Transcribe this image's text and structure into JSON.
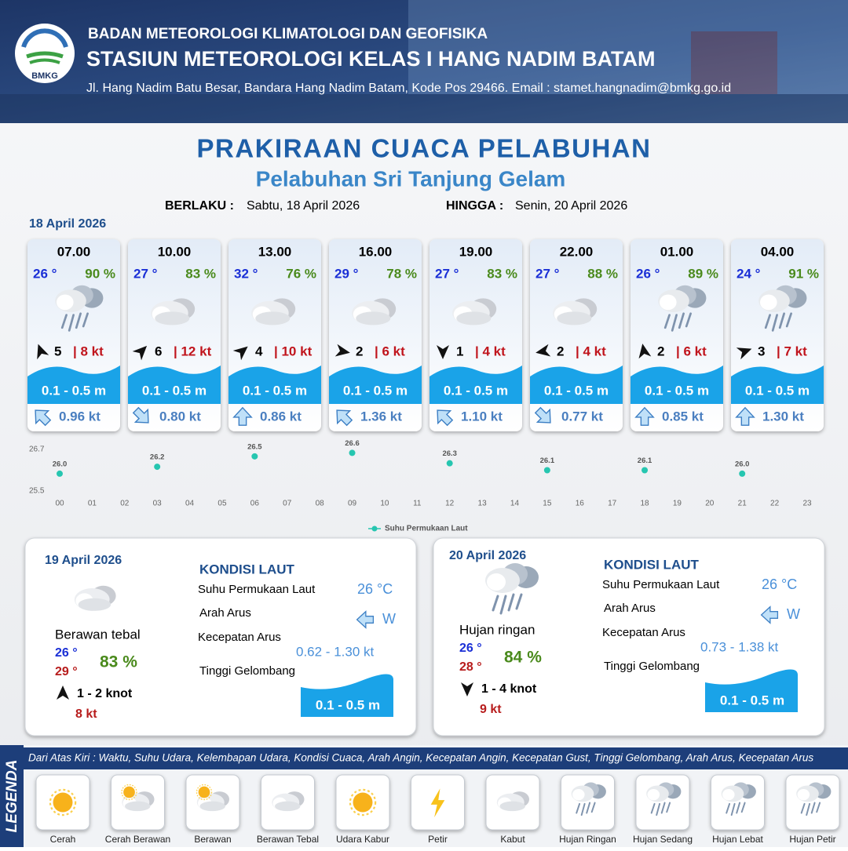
{
  "header": {
    "logo": "BMKG",
    "agency": "BADAN METEOROLOGI KLIMATOLOGI DAN GEOFISIKA",
    "station": "STASIUN METEOROLOGI KELAS I HANG NADIM BATAM",
    "address": "Jl. Hang Nadim Batu Besar, Bandara Hang Nadim Batam, Kode Pos 29466. Email : stamet.hangnadim@bmkg.go.id"
  },
  "title": "PRAKIRAAN CUACA PELABUHAN",
  "subtitle": "Pelabuhan Sri Tanjung Gelam",
  "validity": {
    "from_label": "BERLAKU :",
    "from": "Sabtu, 18 April 2026",
    "to_label": "HINGGA :",
    "to": "Senin, 20 April 2026"
  },
  "day1": {
    "date": "18 April 2026",
    "forecasts": [
      {
        "time": "07.00",
        "temp": "26 °",
        "humidity": "90 %",
        "wind": "5",
        "gust": "| 8 kt",
        "wave": "0.1 - 0.5 m",
        "current": "0.96 kt"
      },
      {
        "time": "10.00",
        "temp": "27 °",
        "humidity": "83 %",
        "wind": "6",
        "gust": "| 12 kt",
        "wave": "0.1 - 0.5 m",
        "current": "0.80 kt"
      },
      {
        "time": "13.00",
        "temp": "32 °",
        "humidity": "76 %",
        "wind": "4",
        "gust": "| 10 kt",
        "wave": "0.1 - 0.5 m",
        "current": "0.86 kt"
      },
      {
        "time": "16.00",
        "temp": "29 °",
        "humidity": "78 %",
        "wind": "2",
        "gust": "| 6 kt",
        "wave": "0.1 - 0.5 m",
        "current": "1.36 kt"
      },
      {
        "time": "19.00",
        "temp": "27 °",
        "humidity": "83 %",
        "wind": "1",
        "gust": "| 4 kt",
        "wave": "0.1 - 0.5 m",
        "current": "1.10 kt"
      },
      {
        "time": "22.00",
        "temp": "27 °",
        "humidity": "88 %",
        "wind": "2",
        "gust": "| 4 kt",
        "wave": "0.1 - 0.5 m",
        "current": "0.77 kt"
      },
      {
        "time": "01.00",
        "temp": "26 °",
        "humidity": "89 %",
        "wind": "2",
        "gust": "| 6 kt",
        "wave": "0.1 - 0.5 m",
        "current": "0.85 kt"
      },
      {
        "time": "04.00",
        "temp": "24 °",
        "humidity": "91 %",
        "wind": "3",
        "gust": "| 7 kt",
        "wave": "0.1 - 0.5 m",
        "current": "1.30 kt"
      }
    ]
  },
  "chart_data": {
    "type": "scatter",
    "x": [
      0,
      3,
      6,
      9,
      12,
      15,
      18,
      21
    ],
    "series": [
      {
        "name": "Suhu Permukaan Laut",
        "color": "#26c6b0",
        "values": [
          26.0,
          26.2,
          26.5,
          26.6,
          26.3,
          26.1,
          26.1,
          26.0
        ],
        "value_labels": [
          "26.0",
          "26.2",
          "26.5",
          "26.6",
          "26.3",
          "26.1",
          "26.1",
          "26.0"
        ]
      }
    ],
    "xlim": [
      0,
      23
    ],
    "ylim": [
      25.5,
      26.7
    ],
    "yticks": [
      25.5,
      26.7
    ],
    "xticks": [
      {
        "value": 0,
        "label": "00"
      },
      {
        "value": 1,
        "label": "01"
      },
      {
        "value": 2,
        "label": "02"
      },
      {
        "value": 3,
        "label": "03"
      },
      {
        "value": 4,
        "label": "04"
      },
      {
        "value": 5,
        "label": "05"
      },
      {
        "value": 6,
        "label": "06"
      },
      {
        "value": 7,
        "label": "07"
      },
      {
        "value": 8,
        "label": "08"
      },
      {
        "value": 9,
        "label": "09"
      },
      10,
      11,
      12,
      13,
      14,
      15,
      16,
      17,
      18,
      19,
      20,
      21,
      22,
      23
    ]
  },
  "days": [
    {
      "date": "19 April 2026",
      "condition": "Berawan tebal",
      "temp_min": "26 °",
      "temp_max": "29 °",
      "humidity": "83 %",
      "wind": "1  - 2 knot",
      "gust": "8 kt",
      "sea_title": "KONDISI LAUT",
      "sst_label": "Suhu Permukaan Laut",
      "sst": "26 °C",
      "current_dir_label": "Arah Arus",
      "current_dir": "W",
      "current_speed_label": "Kecepatan Arus",
      "current_speed": "0.62  - 1.30 kt",
      "wave_label": "Tinggi Gelombang",
      "wave": "0.1 - 0.5 m"
    },
    {
      "date": "20 April 2026",
      "condition": "Hujan ringan",
      "temp_min": "26 °",
      "temp_max": "28 °",
      "humidity": "84 %",
      "wind": "1  - 4 knot",
      "gust": "9 kt",
      "sea_title": "KONDISI LAUT",
      "sst_label": "Suhu Permukaan Laut",
      "sst": "26 °C",
      "current_dir_label": "Arah Arus",
      "current_dir": "W",
      "current_speed_label": "Kecepatan Arus",
      "current_speed": "0.73  - 1.38 kt",
      "wave_label": "Tinggi Gelombang",
      "wave": "0.1 - 0.5 m"
    }
  ],
  "legend": {
    "title": "LEGENDA",
    "description": "Dari Atas Kiri : Waktu, Suhu Udara, Kelembapan Udara, Kondisi Cuaca, Arah Angin, Kecepatan Angin, Kecepatan Gust, Tinggi Gelombang, Arah Arus, Kecepatan Arus",
    "items": [
      "Cerah",
      "Cerah Berawan",
      "Berawan",
      "Berawan Tebal",
      "Udara Kabur",
      "Petir",
      "Kabut",
      "Hujan Ringan",
      "Hujan Sedang",
      "Hujan Lebat",
      "Hujan Petir"
    ]
  }
}
